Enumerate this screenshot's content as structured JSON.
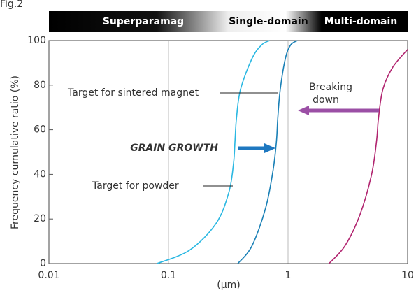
{
  "chart_data": {
    "type": "line",
    "figure_label": "Fig.2",
    "bands": [
      "Superparamag",
      "Single-domain",
      "Multi-domain"
    ],
    "ylabel": "Frequency cumulative ratio (%)",
    "xlabel": "(μm)",
    "xscale": "log",
    "xlim": [
      0.01,
      10
    ],
    "xticks": [
      0.01,
      0.1,
      1,
      10
    ],
    "ylim": [
      0,
      100
    ],
    "yticks": [
      0,
      20,
      40,
      60,
      80,
      100
    ],
    "grid": "x",
    "series": [
      {
        "name": "Target for powder",
        "color": "#2bb8e2",
        "x": [
          0.08,
          0.15,
          0.25,
          0.32,
          0.35,
          0.36,
          0.37,
          0.4,
          0.5,
          0.6,
          0.7
        ],
        "values": [
          0,
          6,
          18,
          32,
          45,
          55,
          65,
          78,
          92,
          98,
          100
        ]
      },
      {
        "name": "Target for sintered magnet",
        "color": "#1a80b6",
        "x": [
          0.38,
          0.5,
          0.65,
          0.75,
          0.8,
          0.82,
          0.86,
          0.95,
          1.05,
          1.2
        ],
        "values": [
          0,
          8,
          25,
          42,
          55,
          65,
          78,
          92,
          98,
          100
        ]
      },
      {
        "name": "Breaking down",
        "color": "#b1246f",
        "x": [
          2.2,
          3,
          4,
          5,
          5.5,
          5.7,
          6.2,
          7.5,
          10
        ],
        "values": [
          0,
          8,
          22,
          40,
          55,
          65,
          78,
          88,
          96
        ]
      }
    ],
    "annotations": [
      "GRAIN GROWTH",
      "Breaking",
      "down"
    ]
  }
}
